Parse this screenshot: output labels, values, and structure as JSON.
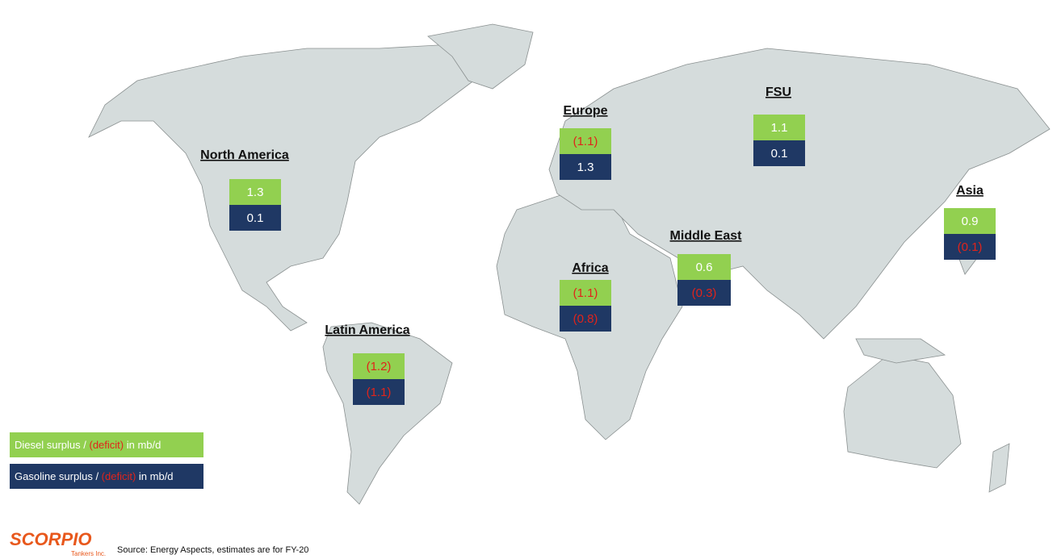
{
  "regions": [
    {
      "name": "North America",
      "diesel": "1.3",
      "gasoline": "0.1"
    },
    {
      "name": "Europe",
      "diesel": "(1.1)",
      "gasoline": "1.3"
    },
    {
      "name": "FSU",
      "diesel": "1.1",
      "gasoline": "0.1"
    },
    {
      "name": "Asia",
      "diesel": "0.9",
      "gasoline": "(0.1)"
    },
    {
      "name": "Middle East",
      "diesel": "0.6",
      "gasoline": "(0.3)"
    },
    {
      "name": "Africa",
      "diesel": "(1.1)",
      "gasoline": "(0.8)"
    },
    {
      "name": "Latin America",
      "diesel": "(1.2)",
      "gasoline": "(1.1)"
    }
  ],
  "legend": {
    "diesel": {
      "prefix": "Diesel surplus / ",
      "deficit": "(deficit)",
      "suffix": " in mb/d"
    },
    "gasoline": {
      "prefix": "Gasoline surplus / ",
      "deficit": "(deficit)",
      "suffix": " in mb/d"
    }
  },
  "logo": {
    "name": "SCORPIO",
    "subtitle": "Tankers Inc."
  },
  "source": "Source: Energy Aspects, estimates are for FY-20"
}
